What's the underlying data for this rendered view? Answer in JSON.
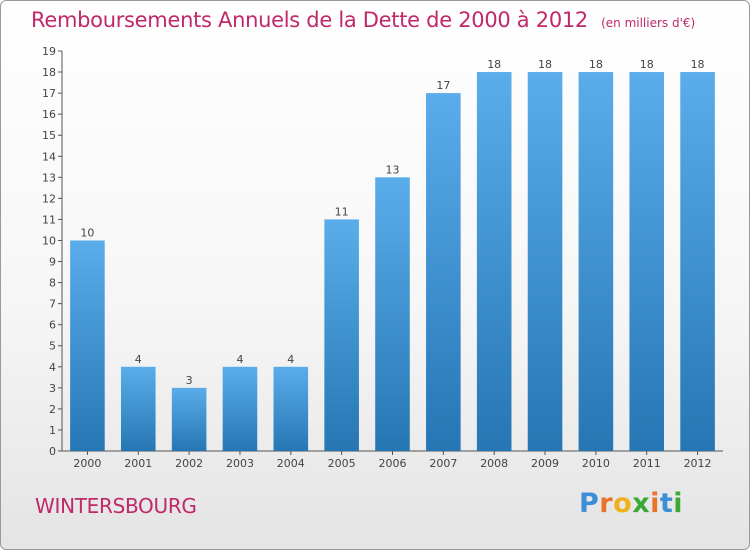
{
  "chart_data": {
    "type": "bar",
    "title": "Remboursements Annuels de la Dette de 2000 à 2012",
    "subtitle": "(en milliers d'€)",
    "categories": [
      "2000",
      "2001",
      "2002",
      "2003",
      "2004",
      "2005",
      "2006",
      "2007",
      "2008",
      "2009",
      "2010",
      "2011",
      "2012"
    ],
    "values": [
      10,
      4,
      3,
      4,
      4,
      11,
      13,
      17,
      18,
      18,
      18,
      18,
      18
    ],
    "ylim": [
      0,
      19
    ],
    "yticks": [
      0,
      1,
      2,
      3,
      4,
      5,
      6,
      7,
      8,
      9,
      10,
      11,
      12,
      13,
      14,
      15,
      16,
      17,
      18,
      19
    ],
    "grid": false,
    "bar_color": "#3d8fd2"
  },
  "footer": {
    "location": "WINTERSBOURG",
    "brand_letters": [
      "P",
      "r",
      "o",
      "x",
      "i",
      "t",
      "i"
    ],
    "brand_colors": [
      "#3a8fd6",
      "#e8732a",
      "#f0b21c",
      "#3aaa35",
      "#e8732a",
      "#3a8fd6",
      "#3aaa35"
    ]
  },
  "colors": {
    "accent": "#c0286a",
    "axis": "#555555"
  }
}
